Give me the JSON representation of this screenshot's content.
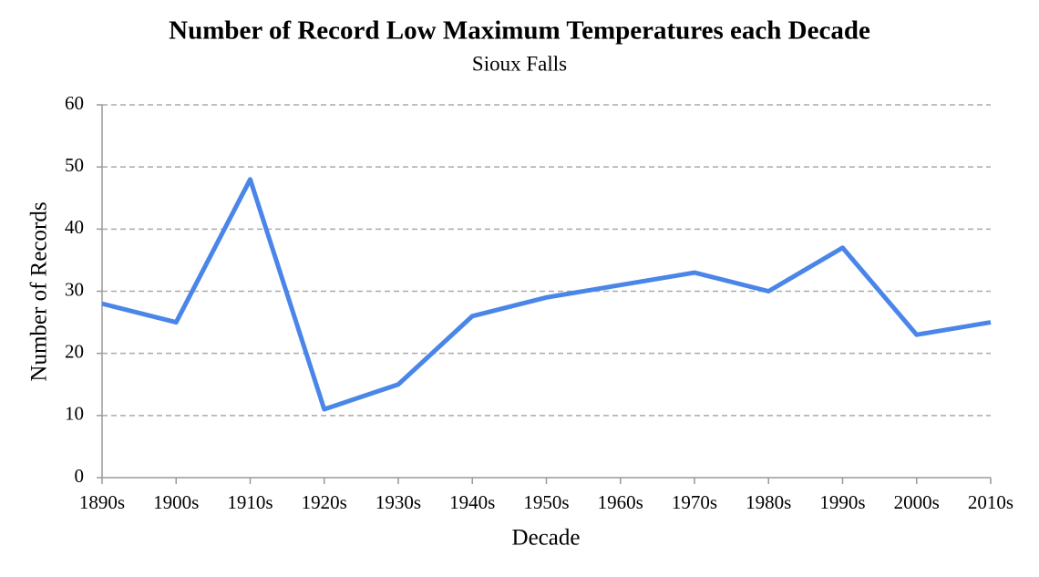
{
  "chart_data": {
    "type": "line",
    "title": "Number of Record Low Maximum Temperatures each Decade",
    "subtitle": "Sioux Falls",
    "x_label": "Decade",
    "y_label": "Number of Records",
    "categories": [
      "1890s",
      "1900s",
      "1910s",
      "1920s",
      "1930s",
      "1940s",
      "1950s",
      "1960s",
      "1970s",
      "1980s",
      "1990s",
      "2000s",
      "2010s"
    ],
    "values": [
      28,
      25,
      48,
      11,
      15,
      26,
      29,
      31,
      33,
      30,
      37,
      23,
      25
    ],
    "color": "#4a86e8",
    "ylim": [
      0,
      60
    ],
    "yticks": [
      0,
      10,
      20,
      30,
      40,
      50,
      60
    ],
    "grid": true
  }
}
